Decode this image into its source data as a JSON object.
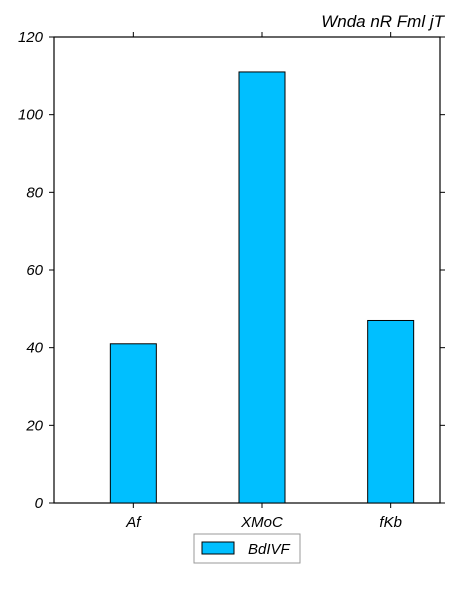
{
  "chart_data": {
    "type": "bar",
    "title": "Wnda nR Fml jT",
    "categories": [
      "Af",
      "XMoC",
      "fKb"
    ],
    "series": [
      {
        "name": "BdIVF",
        "values": [
          41,
          111,
          47
        ]
      }
    ],
    "ylim": [
      0,
      120
    ],
    "yticks": [
      0,
      20,
      40,
      60,
      80,
      100,
      120
    ],
    "xlabel": "",
    "ylabel": "",
    "grid": false,
    "legend": "bottom-center",
    "bar_color": "#00bfff",
    "bar_edge_color": "#000000"
  }
}
